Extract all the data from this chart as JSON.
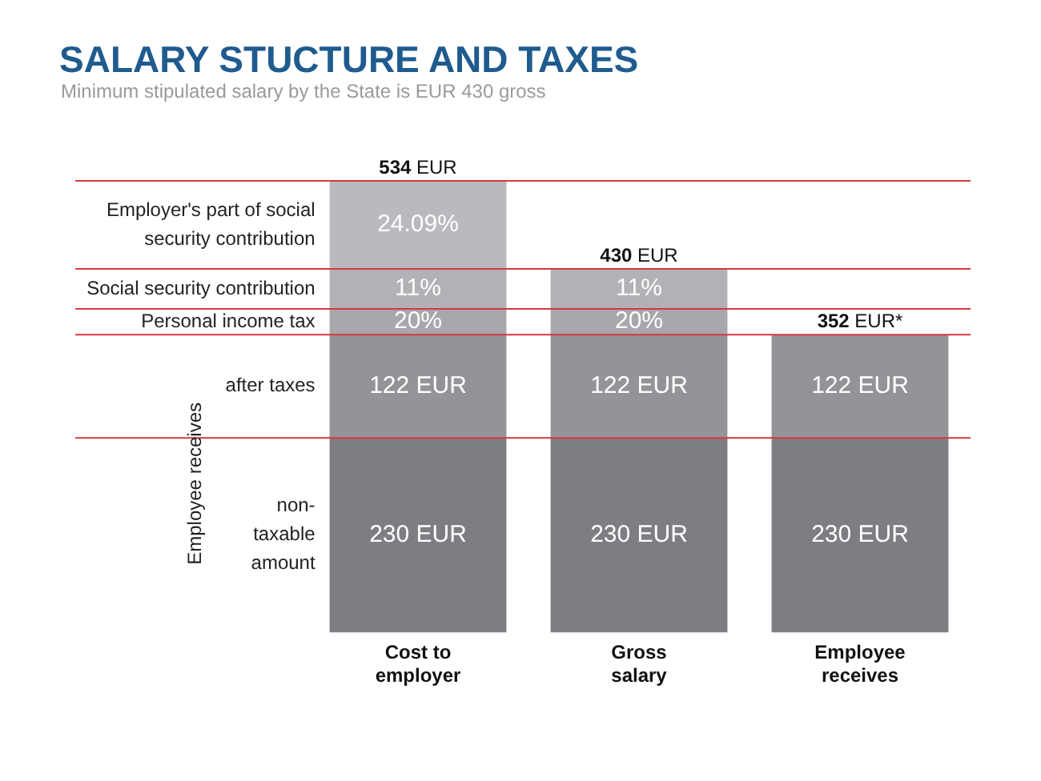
{
  "chart_data": {
    "type": "bar",
    "title": "SALARY STUCTURE AND TAXES",
    "subtitle": "Minimum stipulated salary by the  State is EUR 430 gross",
    "stacked": true,
    "legend": false,
    "grid": false,
    "categories": [
      "Cost to employer",
      "Gross salary",
      "Employee receives"
    ],
    "series": [
      {
        "name": "non-taxable amount",
        "color": "#7d7e81",
        "values": [
          230,
          230,
          230
        ],
        "value_labels": [
          "230 EUR",
          "230 EUR",
          "230 EUR"
        ]
      },
      {
        "name": "after taxes",
        "color": "#939497",
        "values": [
          122,
          122,
          122
        ],
        "value_labels": [
          "122 EUR",
          "122 EUR",
          "122 EUR"
        ]
      },
      {
        "name": "Personal income tax",
        "color": "#a7a8ab",
        "values": [
          30.7,
          30.7,
          null
        ]
      },
      {
        "name": "Social security contribution",
        "color": "#b1b2b5",
        "values": [
          47.3,
          47.3,
          null
        ]
      },
      {
        "name": "Employer's part of social security contribution",
        "color": "#b9babd",
        "values": [
          104,
          null,
          null
        ]
      }
    ],
    "totals": [
      "534 EUR",
      "430 EUR",
      "352 EUR*"
    ],
    "annotations": [
      "Employee receives",
      "20%",
      "20%",
      "11%",
      "11%",
      "24.09%"
    ],
    "ref_lines": [
      {
        "axis": "y",
        "value": 230,
        "color": "#d9363e"
      },
      {
        "axis": "y",
        "value": 352,
        "color": "#d9363e"
      },
      {
        "axis": "y",
        "value": 382.7,
        "color": "#d9363e"
      },
      {
        "axis": "y",
        "value": 430,
        "color": "#d9363e"
      },
      {
        "axis": "y",
        "value": 534,
        "color": "#d9363e"
      }
    ]
  }
}
